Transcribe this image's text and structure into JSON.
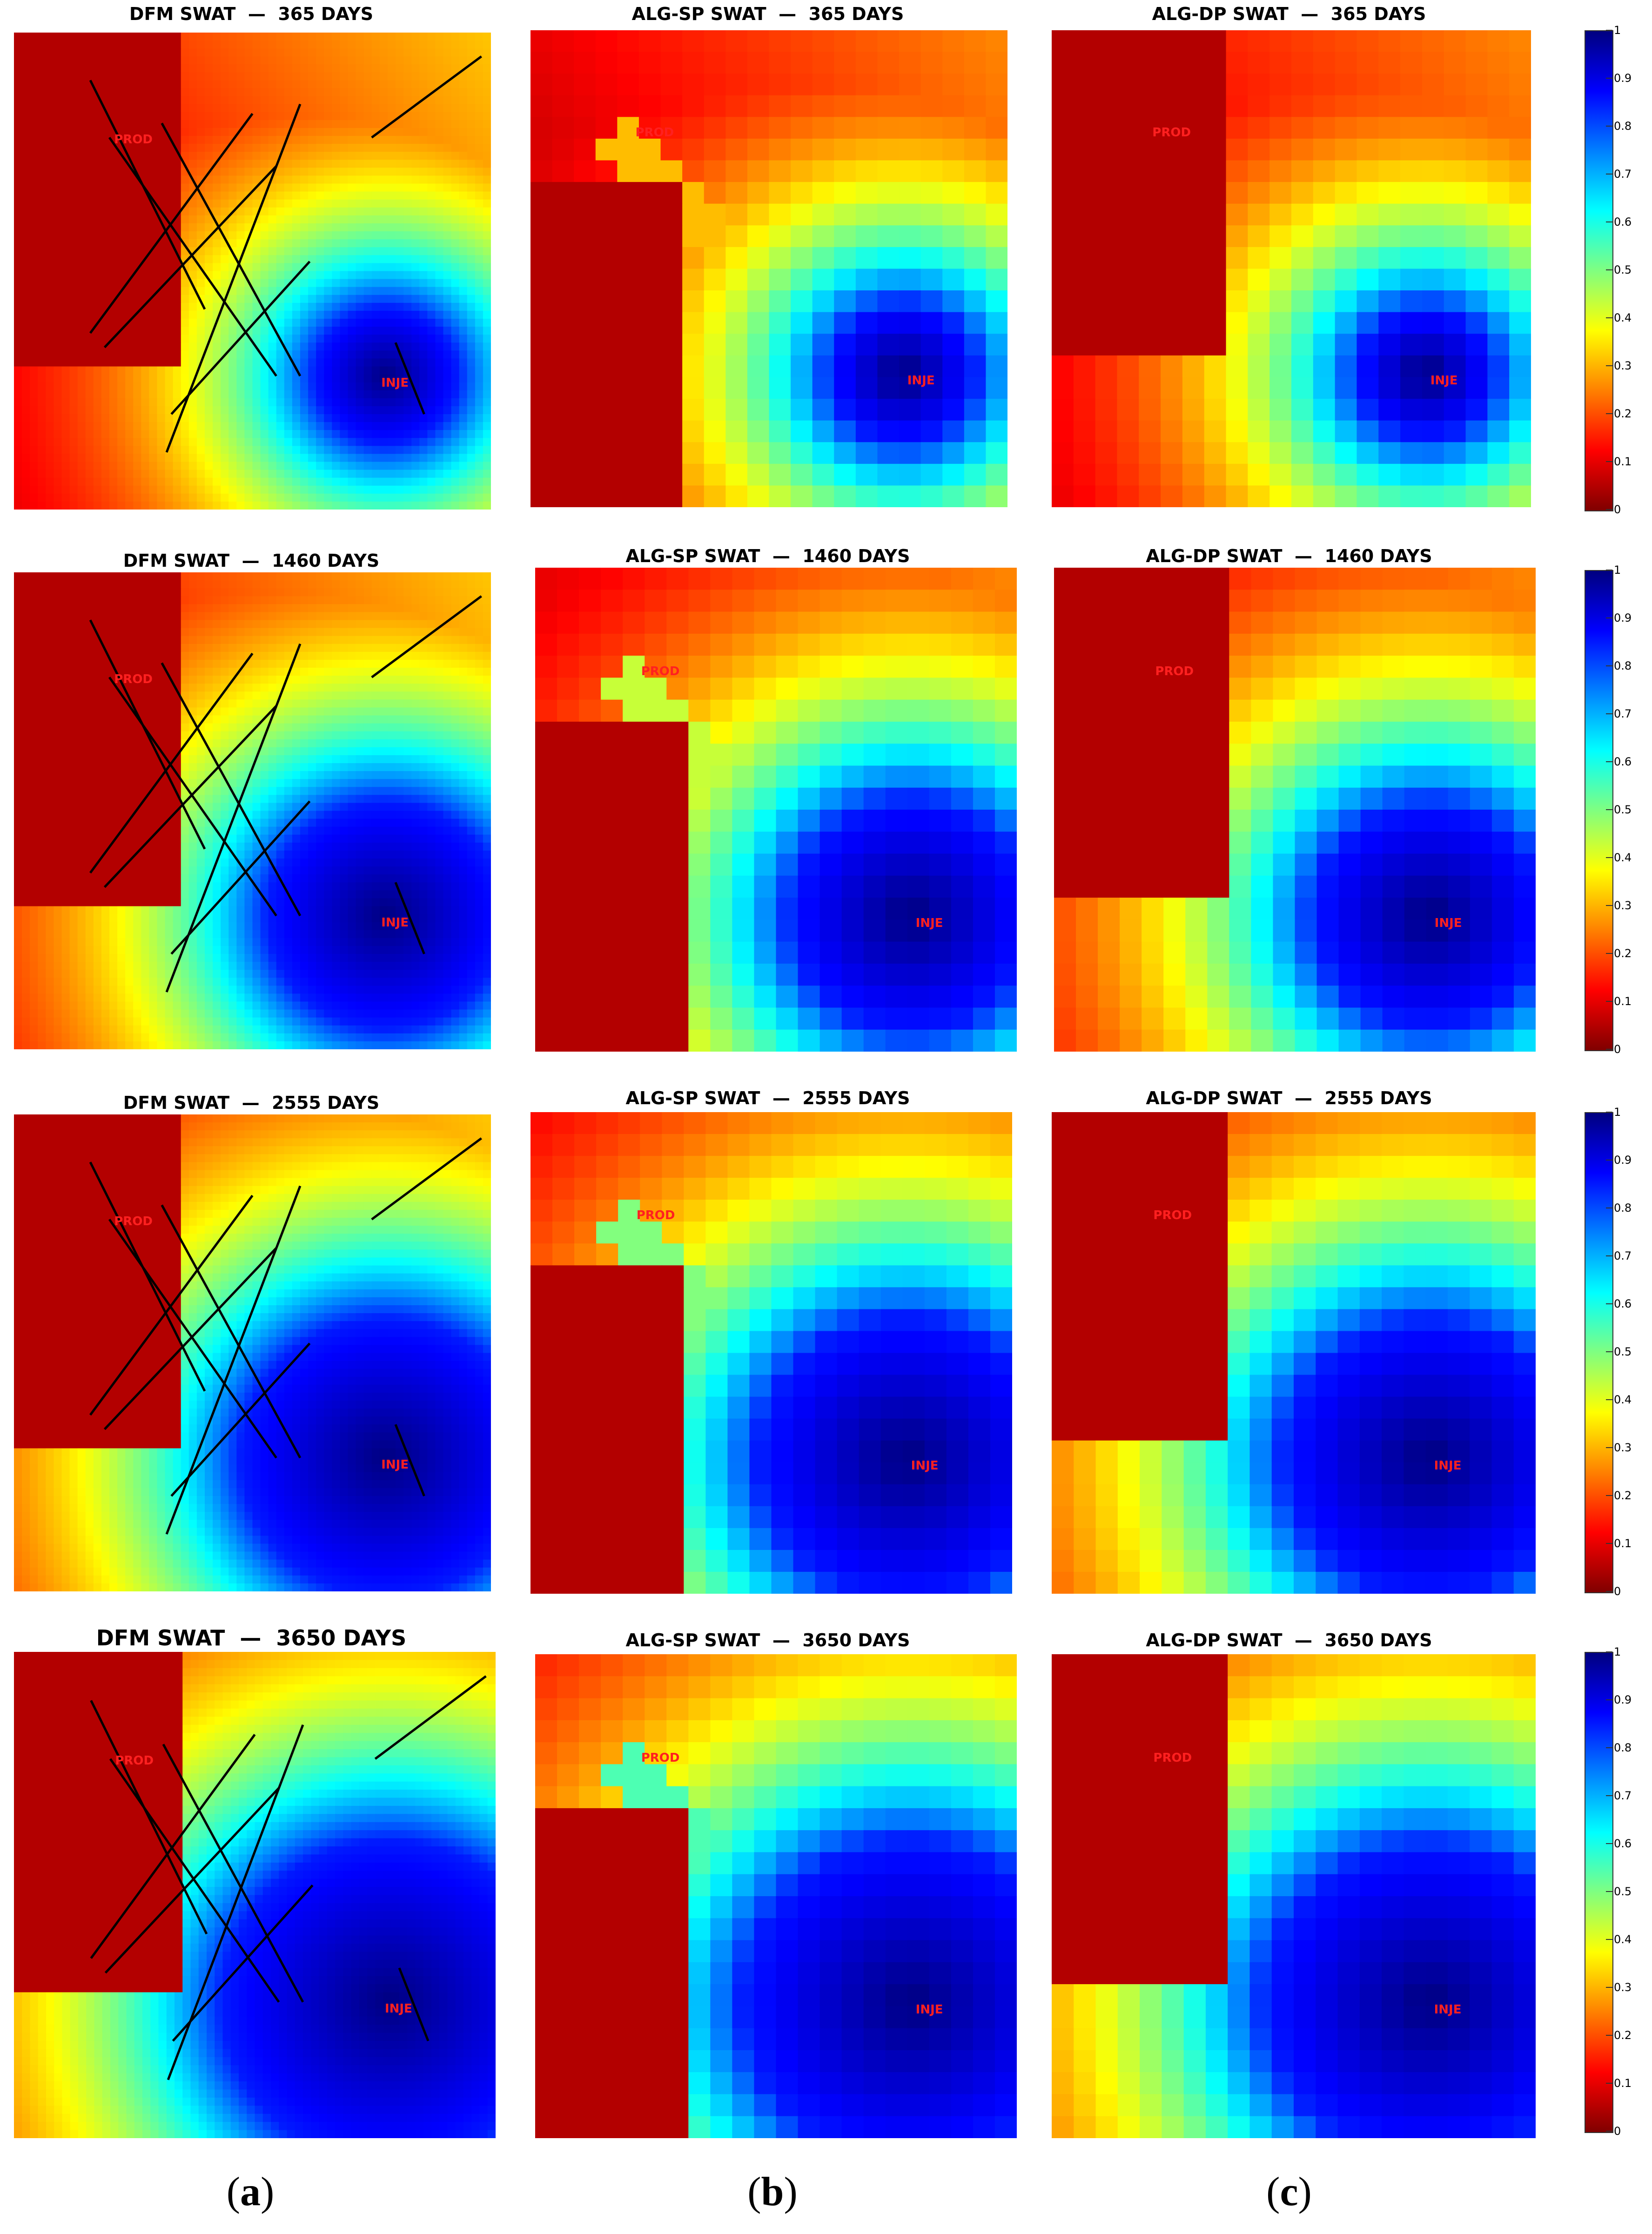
{
  "chart_data": {
    "type": "heatmap",
    "variable": "SWAT",
    "colormap": "jet",
    "zlim": [
      0,
      1
    ],
    "colorbar_ticks": [
      "1",
      "0.9",
      "0.8",
      "0.7",
      "0.6",
      "0.5",
      "0.4",
      "0.3",
      "0.2",
      "0.1",
      "0"
    ],
    "wells": [
      "PROD",
      "INJE"
    ],
    "models": [
      "DFM",
      "ALG-SP",
      "ALG-DP"
    ],
    "times": [
      "365",
      "1460",
      "2555",
      "3650"
    ],
    "column_labels": [
      "a",
      "b",
      "c"
    ],
    "panels": [
      {
        "title": "DFM SWAT  —  365 DAYS",
        "model": "DFM",
        "days": 365,
        "swept_level": 0.15
      },
      {
        "title": "ALG-SP SWAT  —  365 DAYS",
        "model": "ALG-SP",
        "days": 365,
        "swept_level": 0.15
      },
      {
        "title": "ALG-DP SWAT  —  365 DAYS",
        "model": "ALG-DP",
        "days": 365,
        "swept_level": 0.12
      },
      {
        "title": "DFM SWAT  —  1460 DAYS",
        "model": "DFM",
        "days": 1460,
        "swept_level": 0.45
      },
      {
        "title": "ALG-SP SWAT  —  1460 DAYS",
        "model": "ALG-SP",
        "days": 1460,
        "swept_level": 0.45
      },
      {
        "title": "ALG-DP SWAT  —  1460 DAYS",
        "model": "ALG-DP",
        "days": 1460,
        "swept_level": 0.42
      },
      {
        "title": "DFM SWAT  —  2555 DAYS",
        "model": "DFM",
        "days": 2555,
        "swept_level": 0.62
      },
      {
        "title": "ALG-SP SWAT  —  2555 DAYS",
        "model": "ALG-SP",
        "days": 2555,
        "swept_level": 0.62
      },
      {
        "title": "ALG-DP SWAT  —  2555 DAYS",
        "model": "ALG-DP",
        "days": 2555,
        "swept_level": 0.6
      },
      {
        "title": "DFM SWAT  —  3650 DAYS",
        "model": "DFM",
        "days": 3650,
        "swept_level": 0.75
      },
      {
        "title": "ALG-SP SWAT  —  3650 DAYS",
        "model": "ALG-SP",
        "days": 3650,
        "swept_level": 0.75
      },
      {
        "title": "ALG-DP SWAT  —  3650 DAYS",
        "model": "ALG-DP",
        "days": 3650,
        "swept_level": 0.72
      }
    ]
  }
}
